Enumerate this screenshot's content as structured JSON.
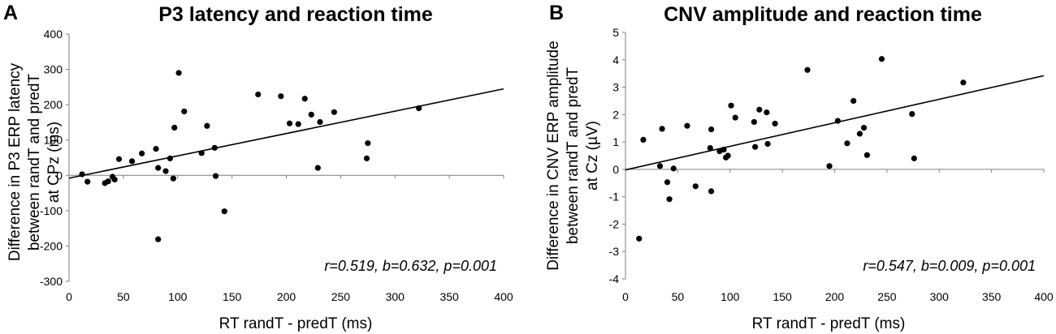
{
  "chart_data": [
    {
      "panel": "A",
      "type": "scatter",
      "title": "P3 latency and reaction time",
      "xlabel": "RT randT - predT (ms)",
      "ylabel_lines": [
        "Difference in P3 ERP latency",
        "between randT and predT",
        "at CPz (ms)"
      ],
      "xlim": [
        0,
        400
      ],
      "ylim": [
        -300,
        400
      ],
      "xticks": [
        0,
        50,
        100,
        150,
        200,
        250,
        300,
        350,
        400
      ],
      "yticks": [
        -300,
        -200,
        -100,
        0,
        100,
        200,
        300,
        400
      ],
      "stats": "r=0.519, b=0.632, p=0.001",
      "regression": {
        "intercept": -8,
        "slope": 0.632
      },
      "points": [
        {
          "x": 12,
          "y": 3
        },
        {
          "x": 17,
          "y": -18
        },
        {
          "x": 33,
          "y": -22
        },
        {
          "x": 36,
          "y": -17
        },
        {
          "x": 40,
          "y": -4
        },
        {
          "x": 42,
          "y": -12
        },
        {
          "x": 46,
          "y": 46
        },
        {
          "x": 58,
          "y": 40
        },
        {
          "x": 67,
          "y": 62
        },
        {
          "x": 80,
          "y": 75
        },
        {
          "x": 82,
          "y": 21
        },
        {
          "x": 82,
          "y": -181
        },
        {
          "x": 89,
          "y": 12
        },
        {
          "x": 93,
          "y": 48
        },
        {
          "x": 96,
          "y": -9
        },
        {
          "x": 97,
          "y": 135
        },
        {
          "x": 101,
          "y": 290
        },
        {
          "x": 106,
          "y": 181
        },
        {
          "x": 122,
          "y": 63
        },
        {
          "x": 127,
          "y": 140
        },
        {
          "x": 134,
          "y": 78
        },
        {
          "x": 135,
          "y": -2
        },
        {
          "x": 143,
          "y": -102
        },
        {
          "x": 174,
          "y": 229
        },
        {
          "x": 195,
          "y": 224
        },
        {
          "x": 203,
          "y": 147
        },
        {
          "x": 211,
          "y": 145
        },
        {
          "x": 217,
          "y": 217
        },
        {
          "x": 223,
          "y": 172
        },
        {
          "x": 229,
          "y": 21
        },
        {
          "x": 231,
          "y": 151
        },
        {
          "x": 244,
          "y": 179
        },
        {
          "x": 274,
          "y": 48
        },
        {
          "x": 275,
          "y": 91
        },
        {
          "x": 322,
          "y": 190
        }
      ]
    },
    {
      "panel": "B",
      "type": "scatter",
      "title": "CNV amplitude and reaction time",
      "xlabel": "RT randT - predT (ms)",
      "ylabel_lines": [
        "Difference in CNV ERP amplitude",
        "between randT and predT",
        "at Cz (µV)"
      ],
      "xlim": [
        0,
        400
      ],
      "ylim": [
        -4,
        5
      ],
      "xticks": [
        0,
        50,
        100,
        150,
        200,
        250,
        300,
        350,
        400
      ],
      "yticks": [
        -4,
        -3,
        -2,
        -1,
        0,
        1,
        2,
        3,
        4,
        5
      ],
      "stats": "r=0.547, b=0.009, p=0.001",
      "regression": {
        "intercept": -0.02,
        "slope": 0.0086
      },
      "points": [
        {
          "x": 13,
          "y": -2.53
        },
        {
          "x": 17,
          "y": 1.08
        },
        {
          "x": 33,
          "y": 0.12
        },
        {
          "x": 35,
          "y": 1.48
        },
        {
          "x": 40,
          "y": -0.47
        },
        {
          "x": 42,
          "y": -1.09
        },
        {
          "x": 46,
          "y": 0.03
        },
        {
          "x": 59,
          "y": 1.59
        },
        {
          "x": 67,
          "y": -0.62
        },
        {
          "x": 81,
          "y": 0.78
        },
        {
          "x": 82,
          "y": 1.46
        },
        {
          "x": 82,
          "y": -0.8
        },
        {
          "x": 90,
          "y": 0.66
        },
        {
          "x": 94,
          "y": 0.72
        },
        {
          "x": 96,
          "y": 0.43
        },
        {
          "x": 98,
          "y": 0.5
        },
        {
          "x": 101,
          "y": 2.33
        },
        {
          "x": 105,
          "y": 1.89
        },
        {
          "x": 123,
          "y": 1.73
        },
        {
          "x": 124,
          "y": 0.82
        },
        {
          "x": 128,
          "y": 2.18
        },
        {
          "x": 135,
          "y": 2.08
        },
        {
          "x": 136,
          "y": 0.93
        },
        {
          "x": 143,
          "y": 1.67
        },
        {
          "x": 174,
          "y": 3.63
        },
        {
          "x": 195,
          "y": 0.12
        },
        {
          "x": 203,
          "y": 1.77
        },
        {
          "x": 212,
          "y": 0.95
        },
        {
          "x": 218,
          "y": 2.5
        },
        {
          "x": 224,
          "y": 1.3
        },
        {
          "x": 228,
          "y": 1.52
        },
        {
          "x": 231,
          "y": 0.52
        },
        {
          "x": 245,
          "y": 4.03
        },
        {
          "x": 274,
          "y": 2.02
        },
        {
          "x": 276,
          "y": 0.4
        },
        {
          "x": 323,
          "y": 3.17
        }
      ]
    }
  ]
}
